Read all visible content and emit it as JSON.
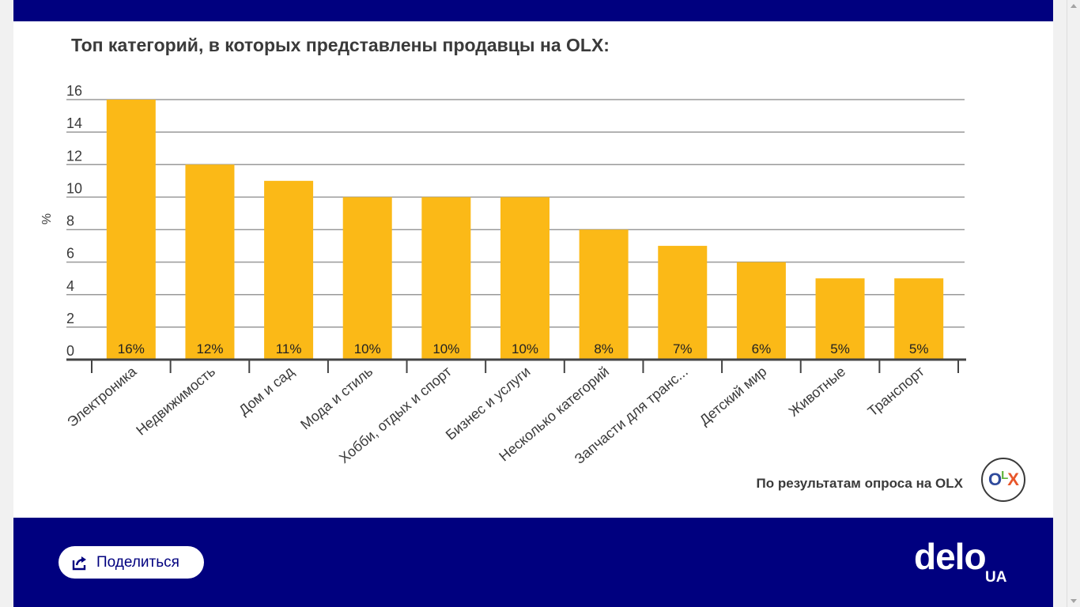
{
  "chart_data": {
    "type": "bar",
    "title": "Топ категорий, в которых представлены продавцы на OLX:",
    "ylabel": "%",
    "xlabel": "",
    "ylim": [
      0,
      16
    ],
    "yticks": [
      "0",
      "2",
      "4",
      "6",
      "8",
      "10",
      "12",
      "14",
      "16"
    ],
    "grid": true,
    "categories": [
      "Электроника",
      "Недвижимость",
      "Дом и сад",
      "Мода и стиль",
      "Хобби, отдых и спорт",
      "Бизнес и услуги",
      "Несколько категорий",
      "Запчасти для транс...",
      "Детский мир",
      "Животные",
      "Транспорт"
    ],
    "values": [
      16,
      12,
      11,
      10,
      10,
      10,
      8,
      7,
      6,
      5,
      5
    ],
    "value_labels": [
      "16%",
      "12%",
      "11%",
      "10%",
      "10%",
      "10%",
      "8%",
      "7%",
      "6%",
      "5%",
      "5%"
    ],
    "bar_color": "#fbb917"
  },
  "source_note": "По результатам опроса на OLX",
  "olx_logo": {
    "text": "OLX",
    "colors": [
      "#2f4a9c",
      "#5fb43a",
      "#e8562a"
    ]
  },
  "share_button": {
    "label": "Поделиться",
    "icon": "share-icon"
  },
  "brand": {
    "name": "delo",
    "suffix": "UA"
  },
  "colors": {
    "header": "#00007f",
    "footer": "#00007f",
    "bar": "#fbb917",
    "title": "#3a3a3a"
  }
}
